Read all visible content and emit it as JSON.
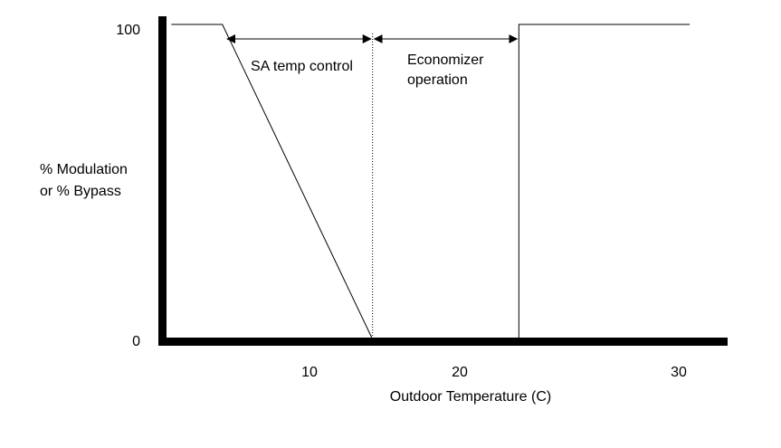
{
  "chart_data": {
    "type": "line",
    "title": "",
    "xlabel": "Outdoor Temperature (C)",
    "ylabel": [
      "% Modulation",
      "or % Bypass"
    ],
    "x_ticks": [
      10,
      20,
      30
    ],
    "y_ticks": [
      0,
      100
    ],
    "xlim": [
      0,
      33
    ],
    "ylim": [
      0,
      100
    ],
    "grid": false,
    "series": [
      {
        "style": "solid",
        "points": [
          [
            0.8,
            100
          ],
          [
            4.2,
            100
          ],
          [
            14.2,
            0
          ]
        ]
      },
      {
        "style": "solid",
        "points": [
          [
            22.7,
            0
          ],
          [
            22.7,
            100
          ],
          [
            30.5,
            100
          ]
        ]
      }
    ],
    "boundary_lines": [
      {
        "x": 14.2,
        "style": "dotted"
      }
    ],
    "annotations": [
      {
        "text": "SA temp control",
        "from": 4.4,
        "to": 14.2
      },
      {
        "text": [
          "Economizer",
          "operation"
        ],
        "from": 14.2,
        "to": 22.7
      }
    ],
    "colors": {
      "line": "#000000",
      "background": "#ffffff"
    }
  }
}
